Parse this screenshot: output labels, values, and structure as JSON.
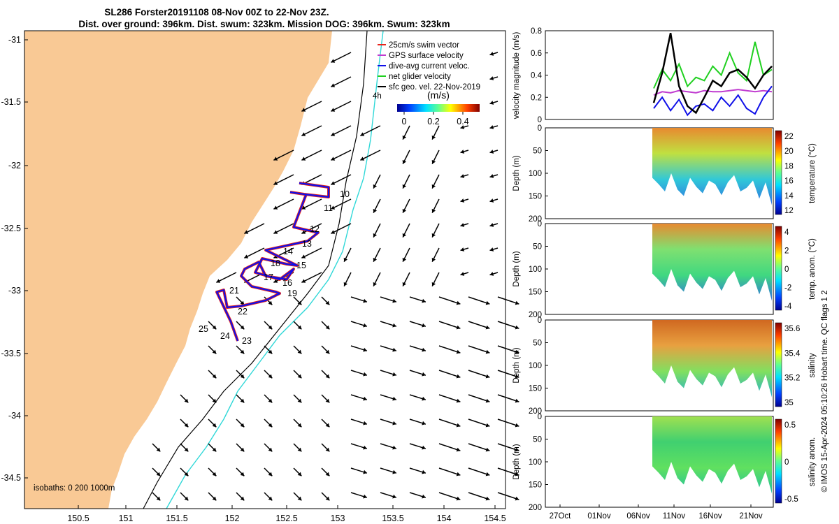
{
  "title_line1": "SL286 Forster20191108 08-Nov 00Z to 22-Nov 23Z.",
  "title_line2": "Dist. over ground: 396km. Dist. swum: 323km. Mission DOG: 396km. Swum: 323km",
  "colors": {
    "land": "#f9c995",
    "vector_red": "#e8241c",
    "gps_magenta": "#c03cd0",
    "dive_blue": "#1010e8",
    "net_green": "#20d020",
    "isobath_200": "#000000",
    "isobath_1000": "#30d8d8"
  },
  "map": {
    "xticks": [
      "150.5",
      "151",
      "151.5",
      "152",
      "152.5",
      "153",
      "153.5",
      "154",
      "154.5"
    ],
    "yticks": [
      "-31",
      "-31.5",
      "-32",
      "-32.5",
      "-33",
      "-33.5",
      "-34",
      "-34.5"
    ],
    "legend": [
      {
        "label": "25cm/s swim vector",
        "color": "#e8241c"
      },
      {
        "label": "GPS surface velocity",
        "color": "#c03cd0"
      },
      {
        "label": "dive-avg current veloc.",
        "color": "#1010e8"
      },
      {
        "label": "net glider velocity",
        "color": "#20d020"
      },
      {
        "label": "sfc geo. vel. 22-Nov-2019",
        "color": "#000000"
      }
    ],
    "legend_extra": "4h",
    "colorbar_label": "(m/s)",
    "colorbar_ticks": [
      "0",
      "0.2",
      "0.4"
    ],
    "isobath_label": "isobaths: 0   200 1000m",
    "waypoint_labels": [
      "10",
      "11",
      "12",
      "13",
      "14",
      "15",
      "16",
      "17",
      "18",
      "19",
      "21",
      "22",
      "23",
      "24",
      "25"
    ]
  },
  "panels": {
    "velocity": {
      "ylabel": "velocity magnitude (m/s)",
      "yticks": [
        "0",
        "0.2",
        "0.4",
        "0.6",
        "0.8"
      ]
    },
    "temperature": {
      "ylabel": "Depth (m)",
      "cbar_label": "temperature (°C)",
      "cbar_ticks": [
        "12",
        "14",
        "16",
        "18",
        "20",
        "22"
      ],
      "yticks": [
        "0",
        "50",
        "100",
        "150",
        "200"
      ]
    },
    "temp_anom": {
      "ylabel": "Depth (m)",
      "cbar_label": "temp. anom. (°C)",
      "cbar_ticks": [
        "-4",
        "-2",
        "0",
        "2",
        "4"
      ],
      "yticks": [
        "0",
        "50",
        "100",
        "150",
        "200"
      ]
    },
    "salinity": {
      "ylabel": "Depth (m)",
      "cbar_label": "salinity",
      "cbar_ticks": [
        "35",
        "35.2",
        "35.4",
        "35.6"
      ],
      "yticks": [
        "0",
        "50",
        "100",
        "150",
        "200"
      ]
    },
    "sal_anom": {
      "ylabel": "Depth (m)",
      "cbar_label": "salinity anom.",
      "cbar_ticks": [
        "-0.5",
        "0",
        "0.5"
      ],
      "yticks": [
        "0",
        "50",
        "100",
        "150",
        "200"
      ]
    },
    "xticks": [
      "27Oct",
      "01Nov",
      "06Nov",
      "11Nov",
      "16Nov",
      "21Nov"
    ]
  },
  "footer": "© IMOS 15-Apr-2024 05:10:26 Hobart time. QC flags 1  2",
  "chart_data": {
    "type": "line",
    "title": "SL286 Forster20191108 08-Nov 00Z to 22-Nov 23Z.",
    "ylabel": "velocity magnitude (m/s)",
    "ylim": [
      0,
      0.8
    ],
    "x": [
      "08Nov",
      "09Nov",
      "10Nov",
      "11Nov",
      "12Nov",
      "13Nov",
      "14Nov",
      "15Nov",
      "16Nov",
      "17Nov",
      "18Nov",
      "19Nov",
      "20Nov",
      "21Nov",
      "22Nov"
    ],
    "series": [
      {
        "name": "GPS surface velocity",
        "color": "#c03cd0",
        "values": [
          0.22,
          0.25,
          0.24,
          0.26,
          0.25,
          0.24,
          0.26,
          0.25,
          0.25,
          0.26,
          0.27,
          0.26,
          0.25,
          0.26,
          0.25
        ]
      },
      {
        "name": "dive-avg current veloc.",
        "color": "#1010e8",
        "values": [
          0.1,
          0.2,
          0.08,
          0.18,
          0.04,
          0.12,
          0.14,
          0.08,
          0.2,
          0.12,
          0.22,
          0.1,
          0.05,
          0.2,
          0.3
        ]
      },
      {
        "name": "net glider velocity",
        "color": "#20d020",
        "values": [
          0.28,
          0.45,
          0.35,
          0.5,
          0.3,
          0.38,
          0.35,
          0.48,
          0.4,
          0.6,
          0.42,
          0.35,
          0.7,
          0.4,
          0.45
        ]
      },
      {
        "name": "sfc geo. vel. 22-Nov-2019",
        "color": "#000000",
        "values": [
          0.15,
          0.42,
          0.78,
          0.3,
          0.12,
          0.06,
          0.2,
          0.35,
          0.3,
          0.42,
          0.45,
          0.38,
          0.28,
          0.4,
          0.48
        ]
      }
    ]
  }
}
